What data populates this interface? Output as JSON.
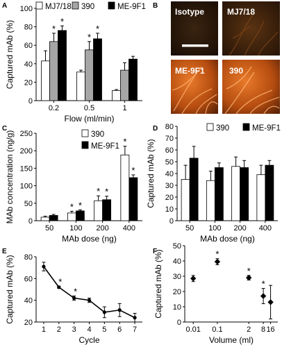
{
  "figure": {
    "background": "#ffffff"
  },
  "panels": {
    "A": {
      "letter": "A"
    },
    "B": {
      "letter": "B",
      "images": [
        {
          "label": "Isotype",
          "scale_bar": true,
          "style": "dark"
        },
        {
          "label": "MJ7/18",
          "scale_bar": false,
          "style": "dim"
        },
        {
          "label": "ME-9F1",
          "scale_bar": false,
          "style": "bright"
        },
        {
          "label": "390",
          "scale_bar": false,
          "style": "bright"
        }
      ]
    },
    "C": {
      "letter": "C"
    },
    "D": {
      "letter": "D"
    },
    "E": {
      "letter": "E"
    },
    "F": {
      "letter": "F"
    }
  },
  "colors": {
    "white_bar": "#ffffff",
    "gray_bar": "#a6a6a6",
    "black_bar": "#000000",
    "axis": "#000000"
  },
  "chart_data": [
    {
      "panel": "A",
      "type": "bar",
      "title": "",
      "xlabel": "Flow (ml/min)",
      "ylabel": "Captured mAb (%)",
      "categories": [
        "0.2",
        "0.5",
        "1"
      ],
      "ylim": [
        0,
        100
      ],
      "yticks": [
        "0",
        "20",
        "40",
        "60",
        "80",
        "100"
      ],
      "legend_position": "top",
      "series": [
        {
          "name": "MJ7/18",
          "color": "#ffffff",
          "values": [
            43,
            31,
            11
          ],
          "errors": [
            11,
            2,
            1
          ]
        },
        {
          "name": "390",
          "color": "#a6a6a6",
          "values": [
            64,
            55,
            33
          ],
          "errors": [
            9,
            9,
            8
          ]
        },
        {
          "name": "ME-9F1",
          "color": "#000000",
          "values": [
            76,
            67,
            45
          ],
          "errors": [
            5,
            6,
            3
          ]
        }
      ],
      "annotations": [
        {
          "category": 0,
          "series": 1,
          "text": "*"
        },
        {
          "category": 0,
          "series": 2,
          "text": "*"
        },
        {
          "category": 1,
          "series": 1,
          "text": "*"
        },
        {
          "category": 1,
          "series": 2,
          "text": "*"
        }
      ]
    },
    {
      "panel": "C",
      "type": "bar",
      "title": "",
      "xlabel": "MAb dose (ng)",
      "ylabel": "MAb concentration (ng/g)",
      "categories": [
        "50",
        "100",
        "200",
        "400"
      ],
      "ylim": [
        0,
        250
      ],
      "yticks": [
        "0",
        "50",
        "100",
        "150",
        "200",
        "250"
      ],
      "legend_position": "top-left",
      "series": [
        {
          "name": "390",
          "color": "#ffffff",
          "values": [
            10,
            22,
            57,
            188
          ],
          "errors": [
            3,
            5,
            14,
            25
          ]
        },
        {
          "name": "ME-9F1",
          "color": "#000000",
          "values": [
            15,
            28,
            60,
            123
          ],
          "errors": [
            3,
            3,
            10,
            8
          ]
        }
      ],
      "annotations": [
        {
          "category": 1,
          "series": 0,
          "text": "*"
        },
        {
          "category": 1,
          "series": 1,
          "text": "*"
        },
        {
          "category": 2,
          "series": 0,
          "text": "*"
        },
        {
          "category": 2,
          "series": 1,
          "text": "*"
        },
        {
          "category": 3,
          "series": 0,
          "text": "*"
        },
        {
          "category": 3,
          "series": 1,
          "text": "*"
        }
      ]
    },
    {
      "panel": "D",
      "type": "bar",
      "title": "",
      "xlabel": "MAb dose (ng)",
      "ylabel": "Captured mAb (%)",
      "categories": [
        "50",
        "100",
        "200",
        "400"
      ],
      "ylim": [
        0,
        80
      ],
      "yticks": [
        "0",
        "10",
        "20",
        "30",
        "40",
        "50",
        "60",
        "70",
        "80"
      ],
      "legend_position": "top",
      "series": [
        {
          "name": "390",
          "color": "#ffffff",
          "values": [
            35,
            34,
            46,
            39
          ],
          "errors": [
            12,
            8,
            8,
            8
          ]
        },
        {
          "name": "ME-9F1",
          "color": "#000000",
          "values": [
            53,
            45,
            45,
            47
          ],
          "errors": [
            10,
            4,
            6,
            4
          ]
        }
      ],
      "annotations": []
    },
    {
      "panel": "E",
      "type": "line",
      "title": "",
      "xlabel": "Cycle",
      "ylabel": "Captured mAb (%)",
      "x": [
        1,
        2,
        3,
        4,
        5,
        6,
        7
      ],
      "xlim": [
        0.5,
        7.5
      ],
      "xticks": [
        "1",
        "2",
        "3",
        "4",
        "5",
        "6",
        "7"
      ],
      "ylim": [
        20,
        80
      ],
      "yticks": [
        "20",
        "40",
        "60",
        "80"
      ],
      "series": [
        {
          "values": [
            71,
            52,
            42,
            40,
            29,
            31,
            24
          ],
          "errors": [
            4,
            1,
            2,
            2,
            5,
            6,
            4
          ],
          "color": "#000000"
        }
      ],
      "annotations": [
        {
          "index": 1,
          "text": "*"
        },
        {
          "index": 2,
          "text": "*"
        }
      ]
    },
    {
      "panel": "F",
      "type": "scatter",
      "title": "",
      "xlabel": "Volume (ml)",
      "ylabel": "Captured mAb (%)",
      "xscale": "log",
      "x": [
        0.01,
        0.1,
        2,
        8,
        16
      ],
      "xticks": [
        "0.01",
        "0.1",
        "2",
        "8",
        "16"
      ],
      "ylim": [
        0,
        50
      ],
      "yticks": [
        "0",
        "10",
        "20",
        "30",
        "40",
        "50"
      ],
      "series": [
        {
          "values": [
            28.5,
            39.5,
            29,
            17,
            13
          ],
          "errors": [
            2,
            2,
            1.5,
            5,
            11
          ],
          "marker": "diamond",
          "color": "#000000"
        }
      ],
      "annotations": [
        {
          "index": 1,
          "text": "*"
        },
        {
          "index": 2,
          "text": "*"
        },
        {
          "index": 3,
          "text": "*"
        }
      ]
    }
  ]
}
